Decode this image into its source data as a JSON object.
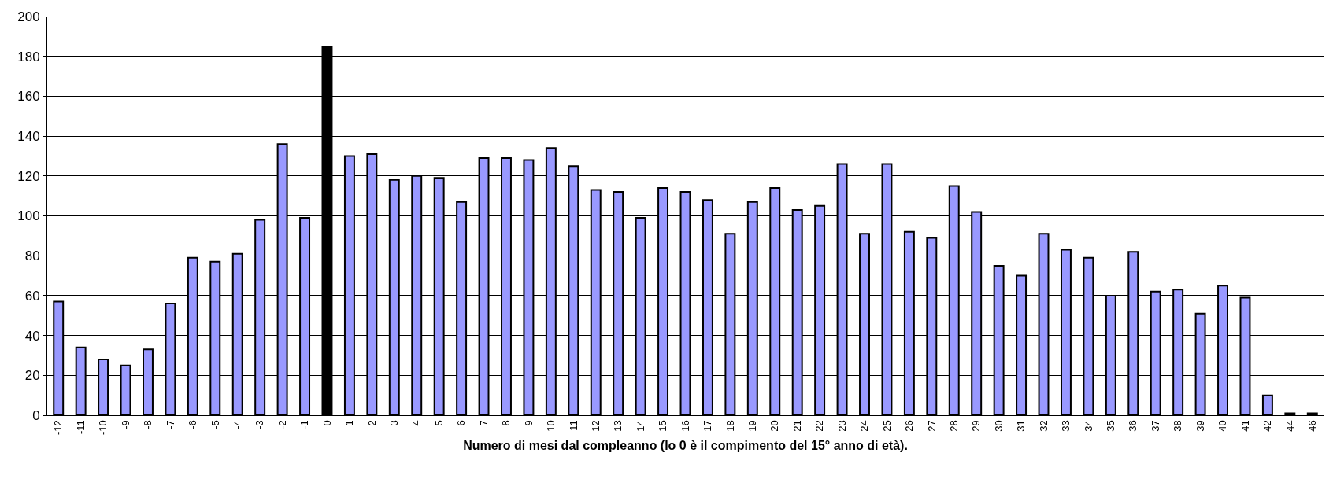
{
  "chart_data": {
    "type": "bar",
    "xlabel": "Numero di mesi dal compleanno (lo 0 è il compimento del 15° anno di età).",
    "categories": [
      "-12",
      "-11",
      "-10",
      "-9",
      "-8",
      "-7",
      "-6",
      "-5",
      "-4",
      "-3",
      "-2",
      "-1",
      "0",
      "1",
      "2",
      "3",
      "4",
      "5",
      "6",
      "7",
      "8",
      "9",
      "10",
      "11",
      "12",
      "13",
      "14",
      "15",
      "16",
      "17",
      "18",
      "19",
      "20",
      "21",
      "22",
      "23",
      "24",
      "25",
      "26",
      "27",
      "28",
      "29",
      "30",
      "31",
      "32",
      "33",
      "34",
      "35",
      "36",
      "37",
      "38",
      "39",
      "40",
      "41",
      "42",
      "44",
      "46"
    ],
    "values": [
      57,
      34,
      28,
      25,
      33,
      56,
      79,
      77,
      81,
      98,
      136,
      99,
      185,
      130,
      131,
      118,
      120,
      119,
      107,
      129,
      129,
      128,
      134,
      125,
      113,
      112,
      99,
      114,
      112,
      108,
      91,
      107,
      114,
      103,
      105,
      126,
      91,
      126,
      92,
      89,
      115,
      102,
      75,
      70,
      91,
      83,
      79,
      60,
      82,
      62,
      63,
      51,
      65,
      59,
      10,
      1,
      1
    ],
    "colors": [
      "#9999ff",
      "#9999ff",
      "#9999ff",
      "#9999ff",
      "#9999ff",
      "#9999ff",
      "#9999ff",
      "#9999ff",
      "#9999ff",
      "#9999ff",
      "#9999ff",
      "#9999ff",
      "#000000",
      "#9999ff",
      "#9999ff",
      "#9999ff",
      "#9999ff",
      "#9999ff",
      "#9999ff",
      "#9999ff",
      "#9999ff",
      "#9999ff",
      "#9999ff",
      "#9999ff",
      "#9999ff",
      "#9999ff",
      "#9999ff",
      "#9999ff",
      "#9999ff",
      "#9999ff",
      "#9999ff",
      "#9999ff",
      "#9999ff",
      "#9999ff",
      "#9999ff",
      "#9999ff",
      "#9999ff",
      "#9999ff",
      "#9999ff",
      "#9999ff",
      "#9999ff",
      "#9999ff",
      "#9999ff",
      "#9999ff",
      "#9999ff",
      "#9999ff",
      "#9999ff",
      "#9999ff",
      "#9999ff",
      "#9999ff",
      "#9999ff",
      "#9999ff",
      "#9999ff",
      "#9999ff",
      "#9999ff",
      "#9999ff",
      "#9999ff"
    ],
    "ylim": [
      0,
      200
    ],
    "yticks": [
      0,
      20,
      40,
      60,
      80,
      100,
      120,
      140,
      160,
      180,
      200
    ],
    "grid": "y"
  }
}
